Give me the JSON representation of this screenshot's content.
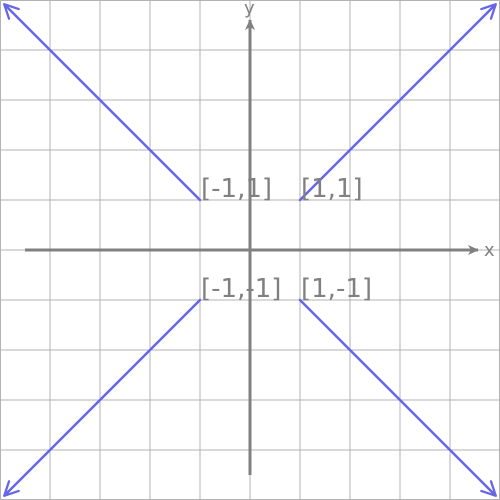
{
  "axes": {
    "x_label": "x",
    "y_label": "y",
    "range": [
      -5,
      5
    ],
    "grid": true,
    "grid_step": 1
  },
  "colors": {
    "grid": "#b3b3b3",
    "axis": "#808080",
    "ray": "#6666e6",
    "label": "#808080"
  },
  "points": [
    {
      "id": "q2",
      "label": "[-1,1]",
      "x": -1,
      "y": 1,
      "direction": [
        -1,
        1
      ]
    },
    {
      "id": "q1",
      "label": "[1,1]",
      "x": 1,
      "y": 1,
      "direction": [
        1,
        1
      ]
    },
    {
      "id": "q3",
      "label": "[-1,-1]",
      "x": -1,
      "y": -1,
      "direction": [
        -1,
        -1
      ]
    },
    {
      "id": "q4",
      "label": "[1,-1]",
      "x": 1,
      "y": -1,
      "direction": [
        1,
        -1
      ]
    }
  ]
}
